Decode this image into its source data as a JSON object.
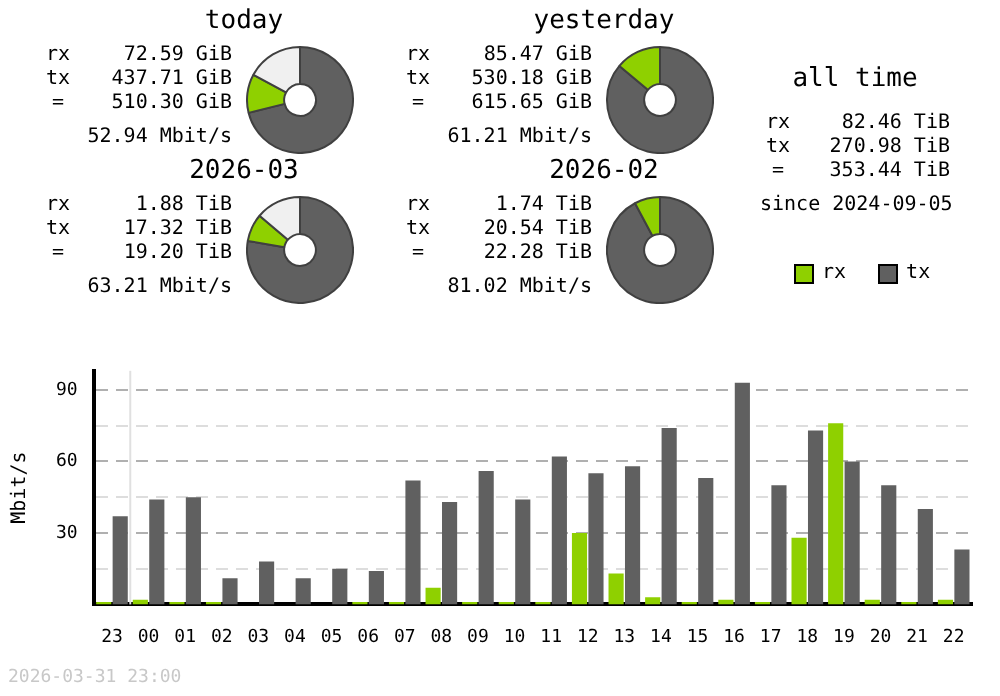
{
  "chart_data": [
    {
      "type": "donut",
      "title": "today",
      "categories": [
        null,
        null,
        null
      ],
      "values": [
        71.1,
        11.79,
        17.11
      ],
      "colors": [
        "#606060",
        "#8fd000",
        "#f0f0f0"
      ],
      "annotations": [
        "rx",
        "72.59 GiB",
        "tx",
        "437.71 GiB",
        "=",
        "510.30 GiB",
        "52.94 Mbit/s"
      ]
    },
    {
      "type": "donut",
      "title": "yesterday",
      "categories": [
        null,
        null
      ],
      "values": [
        86.12,
        13.88
      ],
      "colors": [
        "#606060",
        "#8fd000"
      ],
      "annotations": [
        "rx",
        "85.47 GiB",
        "tx",
        "530.18 GiB",
        "=",
        "615.65 GiB",
        "61.21 Mbit/s"
      ]
    },
    {
      "type": "other",
      "title": "all time",
      "annotations": [
        "rx",
        "82.46 TiB",
        "tx",
        "270.98 TiB",
        "=",
        "353.44 TiB",
        "since 2024-09-05"
      ]
    },
    {
      "type": "donut",
      "title": "2026-03",
      "categories": [
        null,
        null,
        null
      ],
      "values": [
        77.74,
        8.44,
        13.82
      ],
      "colors": [
        "#606060",
        "#8fd000",
        "#f0f0f0"
      ],
      "annotations": [
        "rx",
        "1.88 TiB",
        "tx",
        "17.32 TiB",
        "=",
        "19.20 TiB",
        "63.21 Mbit/s"
      ]
    },
    {
      "type": "donut",
      "title": "2026-02",
      "categories": [
        null,
        null
      ],
      "values": [
        92.19,
        7.81
      ],
      "colors": [
        "#606060",
        "#8fd000"
      ],
      "annotations": [
        "rx",
        "1.74 TiB",
        "tx",
        "20.54 TiB",
        "=",
        "22.28 TiB",
        "81.02 Mbit/s"
      ]
    },
    {
      "type": "bar",
      "ylabel": "Mbit/s",
      "categories": [
        "23",
        "00",
        "01",
        "02",
        "03",
        "04",
        "05",
        "06",
        "07",
        "08",
        "09",
        "10",
        "11",
        "12",
        "13",
        "14",
        "15",
        "16",
        "17",
        "18",
        "19",
        "20",
        "21",
        "22"
      ],
      "series": [
        {
          "name": "rx",
          "color": "#8fd000",
          "values": [
            1,
            2,
            1,
            1,
            0,
            0,
            0,
            1,
            1,
            7,
            1,
            1,
            1,
            30,
            13,
            3,
            1,
            2,
            1,
            28,
            76,
            2,
            1,
            2
          ]
        },
        {
          "name": "tx",
          "color": "#606060",
          "values": [
            37,
            44,
            45,
            11,
            18,
            11,
            15,
            14,
            52,
            43,
            56,
            44,
            62,
            55,
            58,
            74,
            53,
            93,
            50,
            73,
            60,
            50,
            40,
            23
          ]
        }
      ],
      "ylim": [
        0,
        98
      ],
      "yticks": [
        {
          "value": 15,
          "label": null
        },
        30,
        {
          "value": 45,
          "label": null
        },
        60,
        {
          "value": 75,
          "label": null
        },
        90
      ],
      "grid": "y",
      "legend": "top right",
      "ref_lines": [
        {
          "axis": "x",
          "value": "00",
          "color": "#e0e0e0"
        }
      ],
      "annotations": [
        "2026-03-31 23:00"
      ]
    }
  ]
}
